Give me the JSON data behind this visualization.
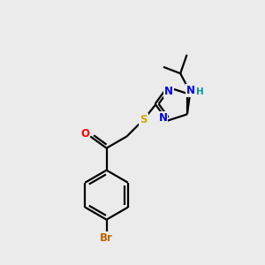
{
  "background_color": "#ebebeb",
  "bond_color": "#000000",
  "N_color": "#0000ee",
  "S_color": "#ccaa00",
  "O_color": "#ff0000",
  "Br_color": "#bb6600",
  "H_color": "#009999",
  "figsize": [
    3.0,
    3.0
  ],
  "dpi": 100,
  "xlim": [
    0,
    10
  ],
  "ylim": [
    0,
    10
  ]
}
